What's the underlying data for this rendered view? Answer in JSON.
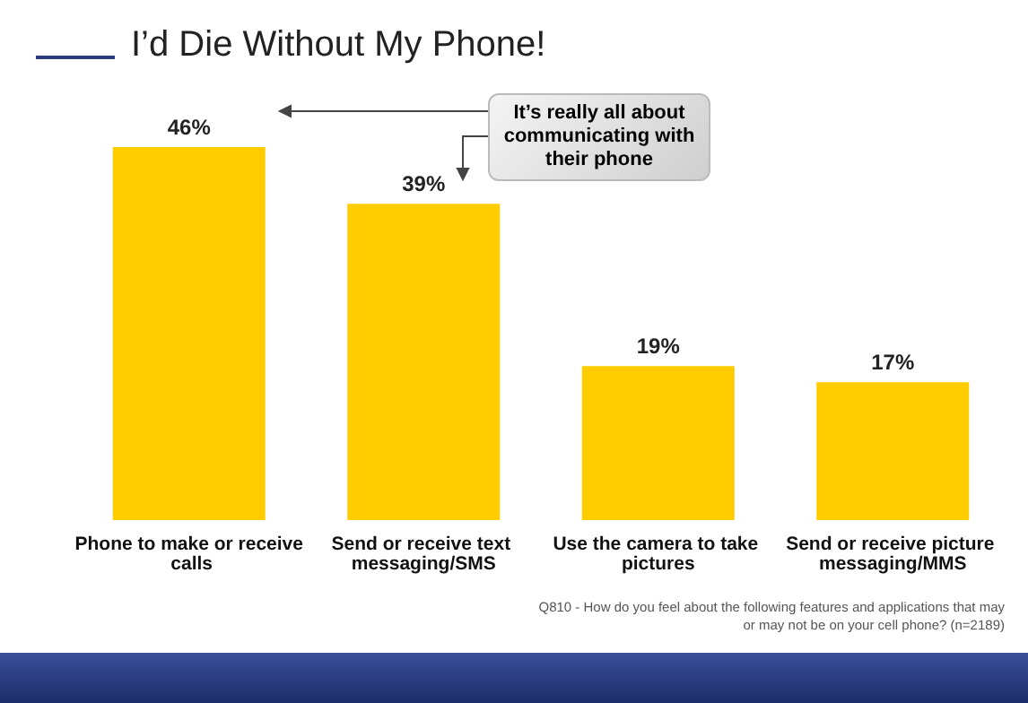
{
  "chart_data": {
    "type": "bar",
    "title": "I’d Die Without My Phone!",
    "categories": [
      "Phone to make or receive calls",
      "Send or receive text messaging/SMS",
      "Use the camera to take pictures",
      "Send or receive picture messaging/MMS"
    ],
    "values": [
      46,
      39,
      19,
      17
    ],
    "value_labels": [
      "46%",
      "39%",
      "19%",
      "17%"
    ],
    "color": "#ffcc00",
    "annotations": [
      "It’s really all about communicating with their phone",
      "Q810 - How do you feel about the following features and applications that may or may not be on your cell phone?  (n=2189)"
    ]
  }
}
